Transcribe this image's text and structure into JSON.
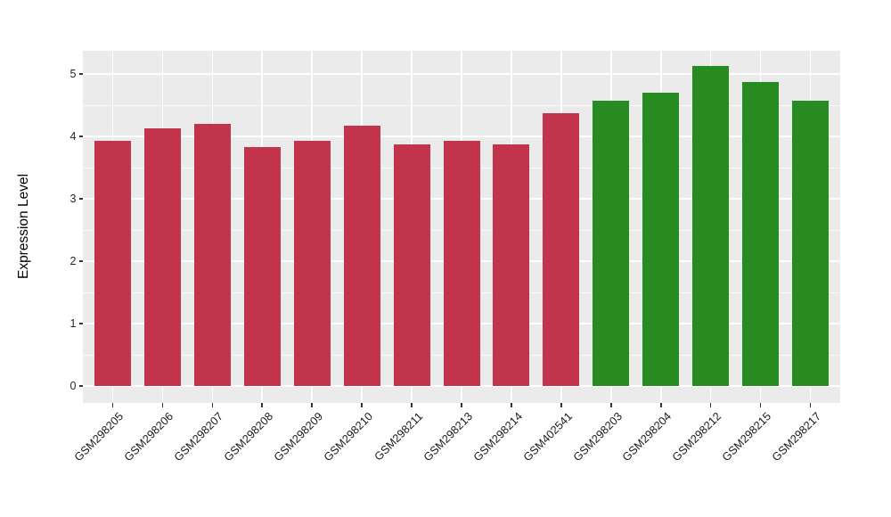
{
  "chart_data": {
    "type": "bar",
    "title": "",
    "xlabel": "",
    "ylabel": "Expression Level",
    "ylim": [
      0,
      5.39
    ],
    "yticks": [
      0,
      1,
      2,
      3,
      4,
      5
    ],
    "yticks_minor": [
      0.5,
      1.5,
      2.5,
      3.5,
      4.5
    ],
    "grid": "white major+minor horizontal, white major vertical at category centers, gray panel",
    "legend_position": "none",
    "categories": [
      "GSM298205",
      "GSM298206",
      "GSM298207",
      "GSM298208",
      "GSM298209",
      "GSM298210",
      "GSM298211",
      "GSM298213",
      "GSM298214",
      "GSM402541",
      "GSM298203",
      "GSM298204",
      "GSM298212",
      "GSM298215",
      "GSM298217"
    ],
    "values": [
      3.94,
      4.14,
      4.21,
      3.84,
      3.94,
      4.17,
      3.88,
      3.94,
      3.88,
      4.37,
      4.58,
      4.71,
      5.13,
      4.87,
      4.58
    ],
    "groups": [
      "group1",
      "group1",
      "group1",
      "group1",
      "group1",
      "group1",
      "group1",
      "group1",
      "group1",
      "group1",
      "group2",
      "group2",
      "group2",
      "group2",
      "group2"
    ],
    "group_colors": {
      "group1": "#C2334C",
      "group2": "#288B22"
    }
  },
  "style": {
    "panel_bg": "#EBEBEB",
    "figure_bg": "#FFFFFF",
    "grid_color": "#FFFFFF",
    "tick_color": "#333333",
    "axis_text_color": "#262626",
    "axis_title_color": "#000000"
  }
}
